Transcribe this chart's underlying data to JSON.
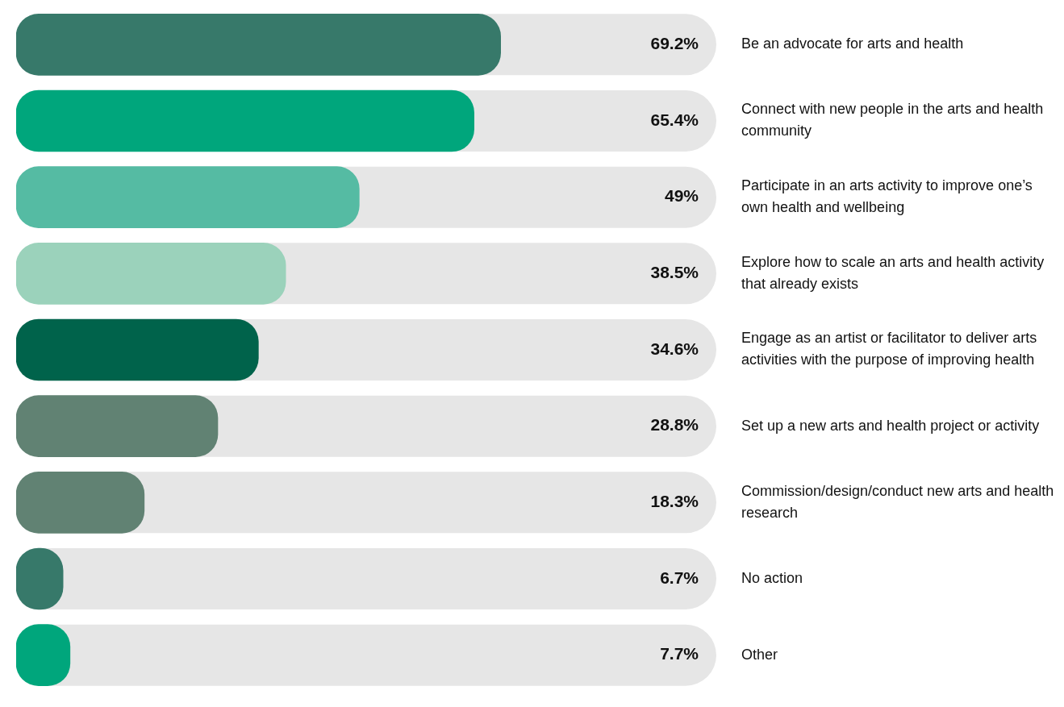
{
  "chart_data": {
    "type": "bar",
    "orientation": "horizontal",
    "categories": [
      "Be an advocate for arts and health",
      "Connect with new people in the arts and health community",
      "Participate in an arts activity to improve one’s own health and wellbeing",
      "Explore how to scale an arts and health activity that already exists",
      "Engage as an artist or facilitator to deliver arts activities with the purpose of improving health",
      "Set up a new arts and health project or activity",
      "Commission/design/conduct new arts and health research",
      "No action",
      "Other"
    ],
    "values": [
      69.2,
      65.4,
      49,
      38.5,
      34.6,
      28.8,
      18.3,
      6.7,
      7.7
    ],
    "value_labels": [
      "69.2%",
      "65.4%",
      "49%",
      "38.5%",
      "34.6%",
      "28.8%",
      "18.3%",
      "6.7%",
      "7.7%"
    ],
    "colors": [
      "#37796a",
      "#00a67c",
      "#55bba3",
      "#9bd2bb",
      "#00634b",
      "#618273",
      "#618273",
      "#37796a",
      "#00a67c"
    ],
    "xlim": [
      0,
      100
    ],
    "tick_labels": "y",
    "legend": false
  }
}
